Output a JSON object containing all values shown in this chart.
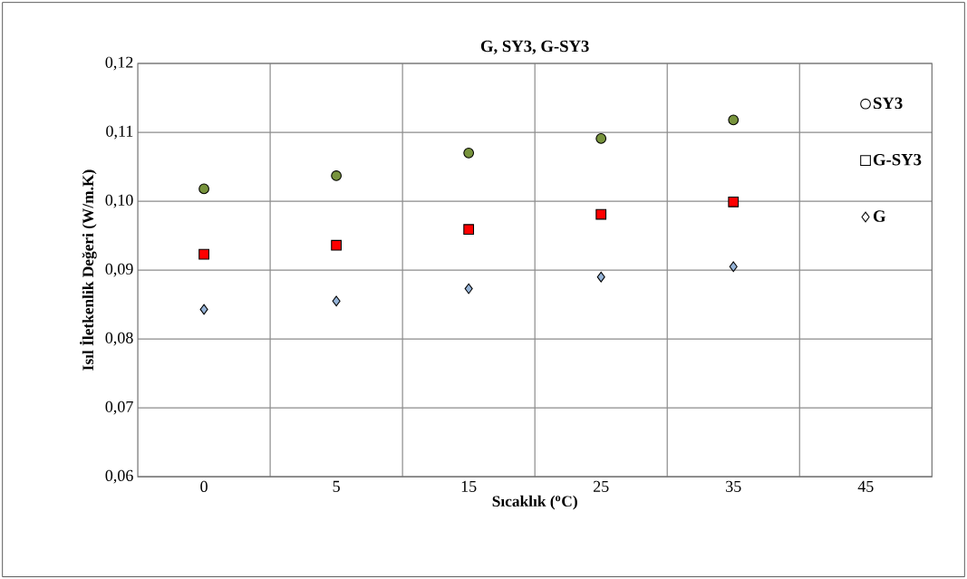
{
  "chart_data": {
    "type": "scatter",
    "title": "**G, SY3, G-SY3**",
    "xlabel": "**Sıcaklık ($^{o}$C)**",
    "ylabel": "**Isıl İletkenlik Değeri (W/m.K)**",
    "categories": [
      "0",
      "5",
      "15",
      "25",
      "35",
      "45"
    ],
    "ylim": [
      0.06,
      0.12
    ],
    "yticks": [
      {
        "value": 0.06,
        "label": "0,06"
      },
      {
        "value": 0.07,
        "label": "0,07"
      },
      {
        "value": 0.08,
        "label": "0,08"
      },
      {
        "value": 0.09,
        "label": "0,09"
      },
      {
        "value": 0.1,
        "label": "0,10"
      },
      {
        "value": 0.11,
        "label": "0,11"
      },
      {
        "value": 0.12,
        "label": "0,12"
      }
    ],
    "grid": true,
    "legend": "right",
    "series": [
      {
        "name": "SY3",
        "color": "#77933c",
        "marker": "circle",
        "values": [
          0.1018,
          0.1037,
          0.107,
          0.1091,
          0.1118,
          null
        ]
      },
      {
        "name": "G-SY3",
        "color": "#ff0000",
        "marker": "square",
        "values": [
          0.0923,
          0.0936,
          0.0959,
          0.0981,
          0.0999,
          null
        ]
      },
      {
        "name": "G",
        "color": "#95b3d7",
        "marker": "diamond",
        "values": [
          0.0843,
          0.0855,
          0.0873,
          0.089,
          0.0905,
          null
        ]
      }
    ]
  }
}
